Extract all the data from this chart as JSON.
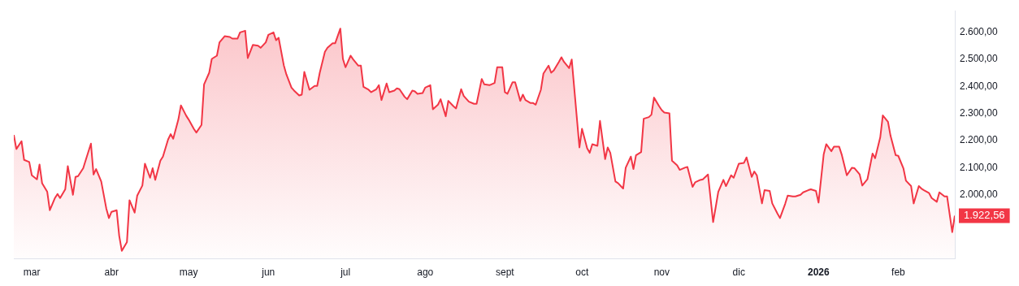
{
  "chart_data": {
    "type": "area",
    "color": "#f23645",
    "x": [
      "2025-02-22",
      "2025-02-23",
      "2025-02-25",
      "2025-02-26",
      "2025-02-28",
      "2025-03-01",
      "2025-03-03",
      "2025-03-04",
      "2025-03-05",
      "2025-03-07",
      "2025-03-08",
      "2025-03-10",
      "2025-03-11",
      "2025-03-12",
      "2025-03-14",
      "2025-03-15",
      "2025-03-17",
      "2025-03-18",
      "2025-03-19",
      "2025-03-21",
      "2025-03-22",
      "2025-03-24",
      "2025-03-25",
      "2025-03-26",
      "2025-03-28",
      "2025-03-30",
      "2025-03-31",
      "2025-04-01",
      "2025-04-03",
      "2025-04-04",
      "2025-04-05",
      "2025-04-07",
      "2025-04-08",
      "2025-04-10",
      "2025-04-11",
      "2025-04-13",
      "2025-04-14",
      "2025-04-16",
      "2025-04-17",
      "2025-04-18",
      "2025-04-20",
      "2025-04-21",
      "2025-04-23",
      "2025-04-24",
      "2025-04-25",
      "2025-04-27",
      "2025-04-28",
      "2025-04-30",
      "2025-05-01",
      "2025-05-03",
      "2025-05-04",
      "2025-05-06",
      "2025-05-07",
      "2025-05-09",
      "2025-05-10",
      "2025-05-12",
      "2025-05-13",
      "2025-05-15",
      "2025-05-17",
      "2025-05-18",
      "2025-05-20",
      "2025-05-21",
      "2025-05-23",
      "2025-05-24",
      "2025-05-26",
      "2025-05-28",
      "2025-05-29",
      "2025-05-31",
      "2025-06-01",
      "2025-06-03",
      "2025-06-04",
      "2025-06-05",
      "2025-06-07",
      "2025-06-08",
      "2025-06-10",
      "2025-06-11",
      "2025-06-13",
      "2025-06-14",
      "2025-06-15",
      "2025-06-17",
      "2025-06-19",
      "2025-06-20",
      "2025-06-21",
      "2025-06-23",
      "2025-06-24",
      "2025-06-26",
      "2025-06-27",
      "2025-06-29",
      "2025-06-30",
      "2025-07-01",
      "2025-07-03",
      "2025-07-04",
      "2025-07-06",
      "2025-07-07",
      "2025-07-08",
      "2025-07-10",
      "2025-07-11",
      "2025-07-13",
      "2025-07-14",
      "2025-07-15",
      "2025-07-17",
      "2025-07-18",
      "2025-07-20",
      "2025-07-21",
      "2025-07-22",
      "2025-07-24",
      "2025-07-25",
      "2025-07-27",
      "2025-07-28",
      "2025-07-29",
      "2025-07-31",
      "2025-08-01",
      "2025-08-03",
      "2025-08-04",
      "2025-08-06",
      "2025-08-07",
      "2025-08-09",
      "2025-08-10",
      "2025-08-12",
      "2025-08-13",
      "2025-08-15",
      "2025-08-16",
      "2025-08-18",
      "2025-08-20",
      "2025-08-21",
      "2025-08-23",
      "2025-08-24",
      "2025-08-26",
      "2025-08-28",
      "2025-08-29",
      "2025-08-31",
      "2025-09-01",
      "2025-09-02",
      "2025-09-04",
      "2025-09-05",
      "2025-09-07",
      "2025-09-08",
      "2025-09-09",
      "2025-09-11",
      "2025-09-12",
      "2025-09-13",
      "2025-09-15",
      "2025-09-16",
      "2025-09-18",
      "2025-09-19",
      "2025-09-20",
      "2025-09-22",
      "2025-09-23",
      "2025-09-24",
      "2025-09-26",
      "2025-09-27",
      "2025-09-30",
      "2025-10-01",
      "2025-10-03",
      "2025-10-04",
      "2025-10-05",
      "2025-10-07",
      "2025-10-08",
      "2025-10-10",
      "2025-10-11",
      "2025-10-12",
      "2025-10-14",
      "2025-10-15",
      "2025-10-17",
      "2025-10-18",
      "2025-10-20",
      "2025-10-21",
      "2025-10-22",
      "2025-10-24",
      "2025-10-25",
      "2025-10-27",
      "2025-10-28",
      "2025-10-29",
      "2025-10-31",
      "2025-11-01",
      "2025-11-02",
      "2025-11-04",
      "2025-11-05",
      "2025-11-07",
      "2025-11-08",
      "2025-11-10",
      "2025-11-11",
      "2025-11-13",
      "2025-11-14",
      "2025-11-16",
      "2025-11-17",
      "2025-11-19",
      "2025-11-21",
      "2025-11-22",
      "2025-11-23",
      "2025-11-25",
      "2025-11-26",
      "2025-11-28",
      "2025-11-29",
      "2025-12-01",
      "2025-12-03",
      "2025-12-04",
      "2025-12-06",
      "2025-12-07",
      "2025-12-08",
      "2025-12-10",
      "2025-12-11",
      "2025-12-13",
      "2025-12-14",
      "2025-12-16",
      "2025-12-17",
      "2025-12-19",
      "2025-12-20",
      "2025-12-22",
      "2025-12-23",
      "2025-12-25",
      "2025-12-26",
      "2025-12-28",
      "2025-12-29",
      "2025-12-31",
      "2026-01-01",
      "2026-01-03",
      "2026-01-04",
      "2026-01-06",
      "2026-01-07",
      "2026-01-09",
      "2026-01-10",
      "2026-01-12",
      "2026-01-14",
      "2026-01-15",
      "2026-01-17",
      "2026-01-18",
      "2026-01-20",
      "2026-01-22",
      "2026-01-23",
      "2026-01-25",
      "2026-01-26",
      "2026-01-28",
      "2026-01-29",
      "2026-01-31",
      "2026-02-01",
      "2026-02-03",
      "2026-02-04",
      "2026-02-06",
      "2026-02-07",
      "2026-02-09",
      "2026-02-10",
      "2026-02-11",
      "2026-02-13",
      "2026-02-14",
      "2026-02-16",
      "2026-02-17",
      "2026-02-19",
      "2026-02-20",
      "2026-02-22",
      "2026-02-23"
    ],
    "values": [
      2221,
      2169,
      2198,
      2129,
      2121,
      2072,
      2057,
      2112,
      2043,
      2011,
      1943,
      1988,
      2003,
      1988,
      2020,
      2106,
      2000,
      2066,
      2069,
      2098,
      2129,
      2189,
      2075,
      2095,
      2049,
      1948,
      1914,
      1937,
      1943,
      1848,
      1793,
      1825,
      1980,
      1934,
      1997,
      2034,
      2115,
      2063,
      2098,
      2055,
      2126,
      2141,
      2204,
      2224,
      2207,
      2278,
      2330,
      2293,
      2278,
      2244,
      2230,
      2258,
      2408,
      2451,
      2502,
      2514,
      2563,
      2586,
      2583,
      2577,
      2577,
      2600,
      2606,
      2505,
      2554,
      2551,
      2543,
      2563,
      2591,
      2600,
      2571,
      2580,
      2479,
      2445,
      2396,
      2385,
      2367,
      2370,
      2454,
      2388,
      2402,
      2402,
      2451,
      2528,
      2543,
      2560,
      2560,
      2614,
      2502,
      2471,
      2514,
      2500,
      2477,
      2477,
      2399,
      2388,
      2379,
      2390,
      2405,
      2350,
      2411,
      2379,
      2385,
      2393,
      2390,
      2362,
      2353,
      2385,
      2382,
      2373,
      2376,
      2396,
      2405,
      2316,
      2333,
      2353,
      2290,
      2347,
      2327,
      2319,
      2390,
      2365,
      2344,
      2336,
      2336,
      2428,
      2408,
      2405,
      2413,
      2471,
      2471,
      2379,
      2373,
      2416,
      2416,
      2347,
      2370,
      2350,
      2339,
      2339,
      2333,
      2388,
      2448,
      2477,
      2451,
      2459,
      2491,
      2508,
      2491,
      2468,
      2500,
      2175,
      2244,
      2172,
      2155,
      2187,
      2181,
      2273,
      2132,
      2175,
      2155,
      2049,
      2043,
      2023,
      2100,
      2141,
      2095,
      2146,
      2158,
      2281,
      2287,
      2296,
      2359,
      2327,
      2313,
      2304,
      2301,
      2126,
      2109,
      2092,
      2100,
      2103,
      2029,
      2046,
      2055,
      2057,
      2075,
      1899,
      1954,
      2011,
      2055,
      2032,
      2072,
      2063,
      2115,
      2118,
      2138,
      2066,
      2086,
      2072,
      1968,
      2017,
      2014,
      1968,
      1931,
      1914,
      1966,
      1997,
      1994,
      1994,
      2000,
      2009,
      2017,
      2020,
      2014,
      1971,
      2149,
      2187,
      2161,
      2178,
      2178,
      2149,
      2072,
      2100,
      2098,
      2075,
      2034,
      2057,
      2152,
      2135,
      2212,
      2293,
      2270,
      2218,
      2146,
      2144,
      2098,
      2052,
      2032,
      1968,
      2032,
      2023,
      2017,
      2006,
      1988,
      1974,
      2009,
      1994,
      1994,
      1862,
      1922.56
    ],
    "xticks": [
      {
        "value": "2025-03-01",
        "label": "mar"
      },
      {
        "value": "2025-04-01",
        "label": "abr"
      },
      {
        "value": "2025-05-01",
        "label": "may"
      },
      {
        "value": "2025-06-01",
        "label": "jun"
      },
      {
        "value": "2025-07-01",
        "label": "jul"
      },
      {
        "value": "2025-08-01",
        "label": "ago"
      },
      {
        "value": "2025-09-01",
        "label": "sept"
      },
      {
        "value": "2025-10-01",
        "label": "oct"
      },
      {
        "value": "2025-11-01",
        "label": "nov"
      },
      {
        "value": "2025-12-01",
        "label": "dic"
      },
      {
        "value": "2026-01-01",
        "label": "2026"
      },
      {
        "value": "2026-02-01",
        "label": "feb"
      }
    ],
    "xlim": [
      "2025-02-22",
      "2026-02-23"
    ],
    "ylim": [
      1765,
      2680
    ],
    "yticks": [
      {
        "value": 2000,
        "label": "2.000,00"
      },
      {
        "value": 2100,
        "label": "2.100,00"
      },
      {
        "value": 2200,
        "label": "2.200,00"
      },
      {
        "value": 2300,
        "label": "2.300,00"
      },
      {
        "value": 2400,
        "label": "2.400,00"
      },
      {
        "value": 2500,
        "label": "2.500,00"
      },
      {
        "value": 2600,
        "label": "2.600,00"
      }
    ],
    "annotations": [
      {
        "text": "1.922,56",
        "x": "2026-02-23",
        "y": 1922.56
      }
    ]
  }
}
